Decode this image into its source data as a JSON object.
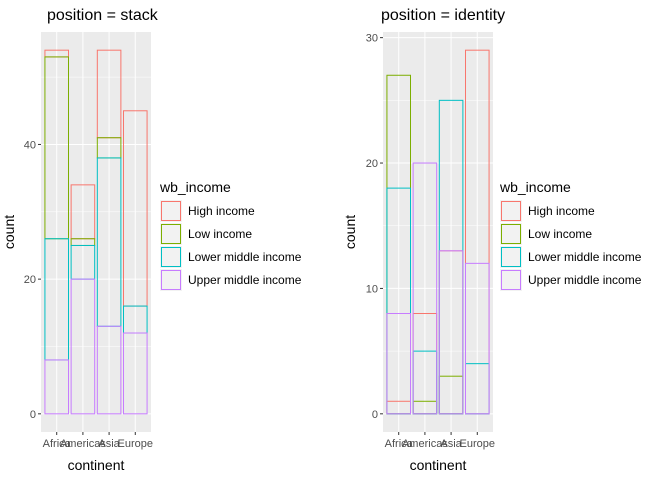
{
  "chart_data": [
    {
      "type": "bar",
      "title": "position = stack",
      "position": "stack",
      "xlabel": "continent",
      "ylabel": "count",
      "categories": [
        "Africa",
        "Americas",
        "Asia",
        "Europe"
      ],
      "yticks": [
        0,
        20,
        40
      ],
      "ylim": [
        0,
        54
      ],
      "series": [
        {
          "name": "High income",
          "color": "#F8766D",
          "values": [
            1,
            8,
            13,
            29
          ]
        },
        {
          "name": "Low income",
          "color": "#7CAE00",
          "values": [
            27,
            1,
            3,
            0
          ]
        },
        {
          "name": "Lower middle income",
          "color": "#00BFC4",
          "values": [
            18,
            5,
            25,
            4
          ]
        },
        {
          "name": "Upper middle income",
          "color": "#C77CFF",
          "values": [
            8,
            20,
            13,
            12
          ]
        }
      ],
      "legend": {
        "title": "wb_income",
        "placement": "right",
        "entries": [
          "High income",
          "Low income",
          "Lower middle income",
          "Upper middle income"
        ]
      },
      "grid": true,
      "fill": "none"
    },
    {
      "type": "bar",
      "title": "position = identity",
      "position": "identity",
      "xlabel": "continent",
      "ylabel": "count",
      "categories": [
        "Africa",
        "Americas",
        "Asia",
        "Europe"
      ],
      "yticks": [
        0,
        10,
        20,
        30
      ],
      "ylim": [
        0,
        29
      ],
      "series": [
        {
          "name": "High income",
          "color": "#F8766D",
          "values": [
            1,
            8,
            13,
            29
          ]
        },
        {
          "name": "Low income",
          "color": "#7CAE00",
          "values": [
            27,
            1,
            3,
            0
          ]
        },
        {
          "name": "Lower middle income",
          "color": "#00BFC4",
          "values": [
            18,
            5,
            25,
            4
          ]
        },
        {
          "name": "Upper middle income",
          "color": "#C77CFF",
          "values": [
            8,
            20,
            13,
            12
          ]
        }
      ],
      "legend": {
        "title": "wb_income",
        "placement": "right",
        "entries": [
          "High income",
          "Low income",
          "Lower middle income",
          "Upper middle income"
        ]
      },
      "grid": true,
      "fill": "none"
    }
  ]
}
